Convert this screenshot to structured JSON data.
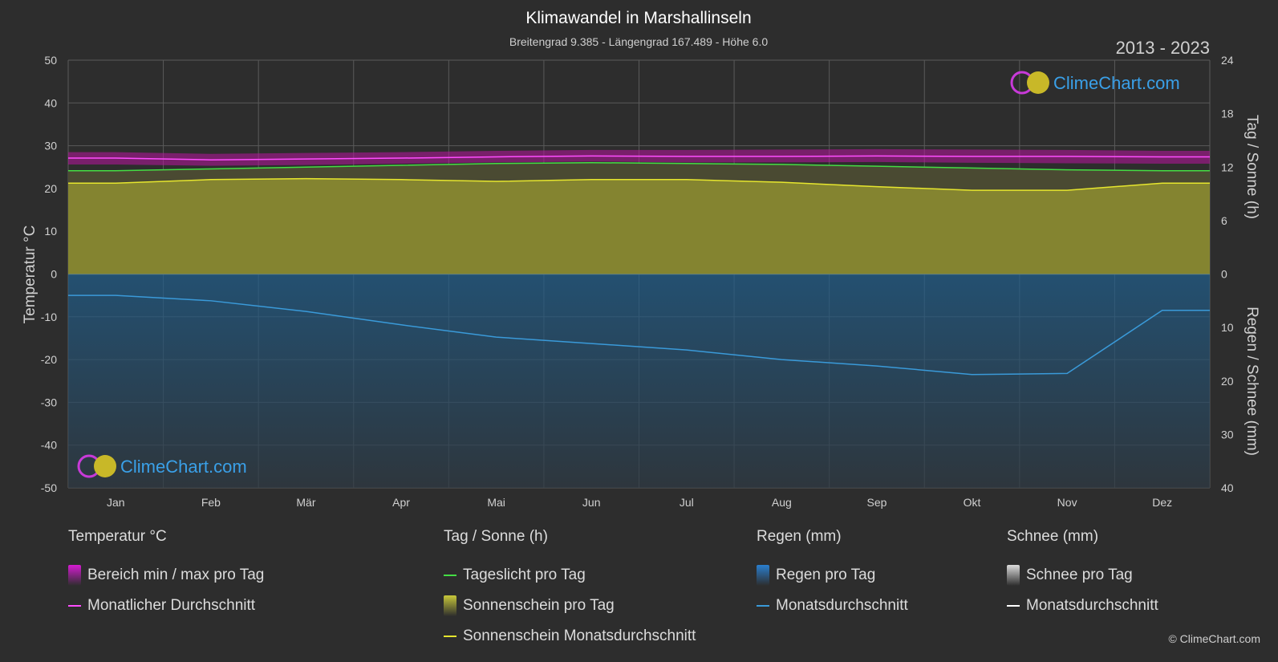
{
  "header": {
    "title": "Klimawandel in Marshallinseln",
    "subtitle": "Breitengrad 9.385 - Längengrad 167.489 - Höhe 6.0",
    "years": "2013 - 2023",
    "logo_text": "ClimeChart.com"
  },
  "chart_data": {
    "type": "line",
    "title": "Klimawandel in Marshallinseln",
    "x_categories": [
      "Jan",
      "Feb",
      "Mär",
      "Apr",
      "Mai",
      "Jun",
      "Jul",
      "Aug",
      "Sep",
      "Okt",
      "Nov",
      "Dez"
    ],
    "axes": {
      "left": {
        "label": "Temperatur °C",
        "ticks": [
          "50",
          "40",
          "30",
          "20",
          "10",
          "0",
          "-10",
          "-20",
          "-30",
          "-40",
          "-50"
        ],
        "range": [
          -50,
          50
        ]
      },
      "right_top": {
        "label": "Tag / Sonne (h)",
        "ticks": [
          "24",
          "18",
          "12",
          "6",
          "0"
        ],
        "range": [
          0,
          24
        ]
      },
      "right_bottom": {
        "label": "Regen / Schnee (mm)",
        "ticks": [
          "10",
          "20",
          "30",
          "40"
        ],
        "range": [
          0,
          40
        ]
      }
    },
    "grid": true,
    "series": [
      {
        "name": "Monatlicher Durchschnitt",
        "unit": "°C",
        "color": "#ff4dff",
        "values": [
          27.1,
          26.7,
          26.9,
          27.1,
          27.4,
          27.6,
          27.5,
          27.5,
          27.6,
          27.5,
          27.5,
          27.4
        ]
      },
      {
        "name": "Bereich min / max pro Tag",
        "unit": "°C",
        "color": "#b8149e",
        "min": [
          25.6,
          25.3,
          25.5,
          25.8,
          26.1,
          26.3,
          26.1,
          26.1,
          26.2,
          26.0,
          25.9,
          25.8
        ],
        "max": [
          28.5,
          28.1,
          28.3,
          28.5,
          28.8,
          29.0,
          29.0,
          29.1,
          29.2,
          29.1,
          29.0,
          28.8
        ]
      },
      {
        "name": "Tageslicht pro Tag",
        "unit": "h",
        "color": "#44dd44",
        "values": [
          11.6,
          11.8,
          12.0,
          12.2,
          12.4,
          12.5,
          12.4,
          12.3,
          12.1,
          11.9,
          11.7,
          11.6
        ]
      },
      {
        "name": "Sonnenschein Monatsdurchschnitt",
        "unit": "h",
        "color": "#e6e62e",
        "values": [
          10.2,
          10.6,
          10.7,
          10.6,
          10.4,
          10.6,
          10.6,
          10.3,
          9.8,
          9.4,
          9.4,
          10.2
        ]
      },
      {
        "name": "Regen Monatsdurchschnitt",
        "unit": "mm",
        "color": "#3a9ad9",
        "values": [
          4.0,
          5.0,
          7.0,
          9.5,
          11.8,
          13.0,
          14.2,
          16.0,
          17.2,
          18.8,
          18.6,
          6.8
        ]
      }
    ]
  },
  "legend": {
    "groups": [
      {
        "title": "Temperatur °C",
        "items": [
          {
            "label": "Bereich min / max pro Tag",
            "kind": "box",
            "color": "#d61bd2"
          },
          {
            "label": "Monatlicher Durchschnitt",
            "kind": "line",
            "color": "#ff4dff"
          }
        ]
      },
      {
        "title": "Tag / Sonne (h)",
        "items": [
          {
            "label": "Tageslicht pro Tag",
            "kind": "line",
            "color": "#44dd44"
          },
          {
            "label": "Sonnenschein pro Tag",
            "kind": "box",
            "color": "#c8c83a"
          },
          {
            "label": "Sonnenschein Monatsdurchschnitt",
            "kind": "line",
            "color": "#e6e62e"
          }
        ]
      },
      {
        "title": "Regen (mm)",
        "items": [
          {
            "label": "Regen pro Tag",
            "kind": "box",
            "color": "#2a7fcf"
          },
          {
            "label": "Monatsdurchschnitt",
            "kind": "line",
            "color": "#3a9ad9"
          }
        ]
      },
      {
        "title": "Schnee (mm)",
        "items": [
          {
            "label": "Schnee pro Tag",
            "kind": "box",
            "color": "#dcdcdc"
          },
          {
            "label": "Monatsdurchschnitt",
            "kind": "line",
            "color": "#ffffff"
          }
        ]
      }
    ]
  },
  "footer": {
    "copyright": "© ClimeChart.com"
  }
}
